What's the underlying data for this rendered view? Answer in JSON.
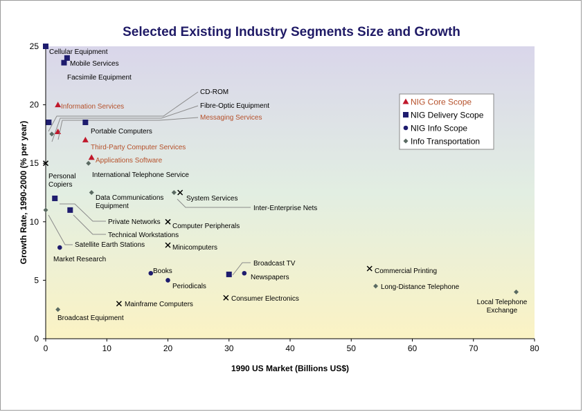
{
  "chart_data": {
    "type": "scatter",
    "title": "Selected Existing Industry Segments Size and Growth",
    "xlabel": "1990 US Market (Billions US$)",
    "ylabel": "Growth Rate, 1990-2000 (% per year)",
    "xlim": [
      0,
      80
    ],
    "ylim": [
      0,
      25
    ],
    "x_ticks": [
      "0",
      "10",
      "20",
      "30",
      "40",
      "50",
      "60",
      "70",
      "80"
    ],
    "y_ticks": [
      "0",
      "5",
      "10",
      "15",
      "20",
      "25"
    ],
    "legend_position": "top-right",
    "colors": {
      "core": "#c0182b",
      "delivery": "#1e1c6e",
      "info": "#1e1c6e",
      "transport": "#5a6a62",
      "unclassified": "#000000",
      "core_label": "#b5502a",
      "title": "#1f1a66"
    },
    "series": [
      {
        "name": "NIG Core Scope",
        "key": "core",
        "marker": "triangle"
      },
      {
        "name": "NIG Delivery Scope",
        "key": "delivery",
        "marker": "square"
      },
      {
        "name": "NIG Info Scope",
        "key": "info",
        "marker": "circle"
      },
      {
        "name": "Info Transportation",
        "key": "transport",
        "marker": "diamond"
      }
    ],
    "points": [
      {
        "label": "Cellular Equipment",
        "x": 0.0,
        "y": 25.0,
        "series": "delivery"
      },
      {
        "label": "Mobile Services",
        "x": 3.5,
        "y": 24.0,
        "series": "delivery"
      },
      {
        "label": "Facsimile Equipment",
        "x": 3.0,
        "y": 23.6,
        "series": "delivery"
      },
      {
        "label": "Information Services",
        "x": 2.0,
        "y": 20.0,
        "series": "core"
      },
      {
        "label": "CD-ROM",
        "x": 0.5,
        "y": 18.5,
        "series": "delivery"
      },
      {
        "label": "Fibre-Optic Equipment",
        "x": 1.0,
        "y": 17.5,
        "series": "transport"
      },
      {
        "label": "Messaging Services",
        "x": 2.0,
        "y": 17.7,
        "series": "core"
      },
      {
        "label": "Portable Computers",
        "x": 6.5,
        "y": 18.5,
        "series": "delivery"
      },
      {
        "label": "Third-Party Computer Services",
        "x": 6.5,
        "y": 17.0,
        "series": "core"
      },
      {
        "label": "Applications Software",
        "x": 7.5,
        "y": 15.5,
        "series": "core"
      },
      {
        "label": "International Telephone Service",
        "x": 7.0,
        "y": 15.0,
        "series": "transport"
      },
      {
        "label": "Personal Copiers",
        "x": 0.0,
        "y": 15.0,
        "series": "unclassified"
      },
      {
        "label": "Data Communications Equipment",
        "x": 7.5,
        "y": 12.5,
        "series": "transport"
      },
      {
        "label": "System Services",
        "x": 22.0,
        "y": 12.5,
        "series": "unclassified"
      },
      {
        "label": "Inter-Enterprise Nets",
        "x": 21.0,
        "y": 12.5,
        "series": "transport"
      },
      {
        "label": "Private Networks",
        "x": 1.5,
        "y": 12.0,
        "series": "delivery"
      },
      {
        "label": "Technical Workstations",
        "x": 4.0,
        "y": 11.0,
        "series": "delivery"
      },
      {
        "label": "Satellite Earth Stations",
        "x": 0.0,
        "y": 11.0,
        "series": "transport"
      },
      {
        "label": "Computer Peripherals",
        "x": 20.0,
        "y": 10.0,
        "series": "unclassified"
      },
      {
        "label": "Minicomputers",
        "x": 20.0,
        "y": 8.0,
        "series": "unclassified"
      },
      {
        "label": "Market Research",
        "x": 2.3,
        "y": 7.8,
        "series": "info"
      },
      {
        "label": "Broadcast TV",
        "x": 30.0,
        "y": 5.5,
        "series": "delivery"
      },
      {
        "label": "Commercial Printing",
        "x": 53.0,
        "y": 6.0,
        "series": "unclassified"
      },
      {
        "label": "Books",
        "x": 17.2,
        "y": 5.6,
        "series": "info"
      },
      {
        "label": "Newspapers",
        "x": 32.5,
        "y": 5.6,
        "series": "info"
      },
      {
        "label": "Periodicals",
        "x": 20.0,
        "y": 5.0,
        "series": "info"
      },
      {
        "label": "Long-Distance Telephone",
        "x": 54.0,
        "y": 4.5,
        "series": "transport"
      },
      {
        "label": "Local Telephone Exchange",
        "x": 77.0,
        "y": 4.0,
        "series": "transport"
      },
      {
        "label": "Mainframe Computers",
        "x": 12.0,
        "y": 3.0,
        "series": "unclassified"
      },
      {
        "label": "Consumer Electronics",
        "x": 29.5,
        "y": 3.5,
        "series": "unclassified"
      },
      {
        "label": "Broadcast Equipment",
        "x": 2.0,
        "y": 2.5,
        "series": "transport"
      }
    ]
  }
}
